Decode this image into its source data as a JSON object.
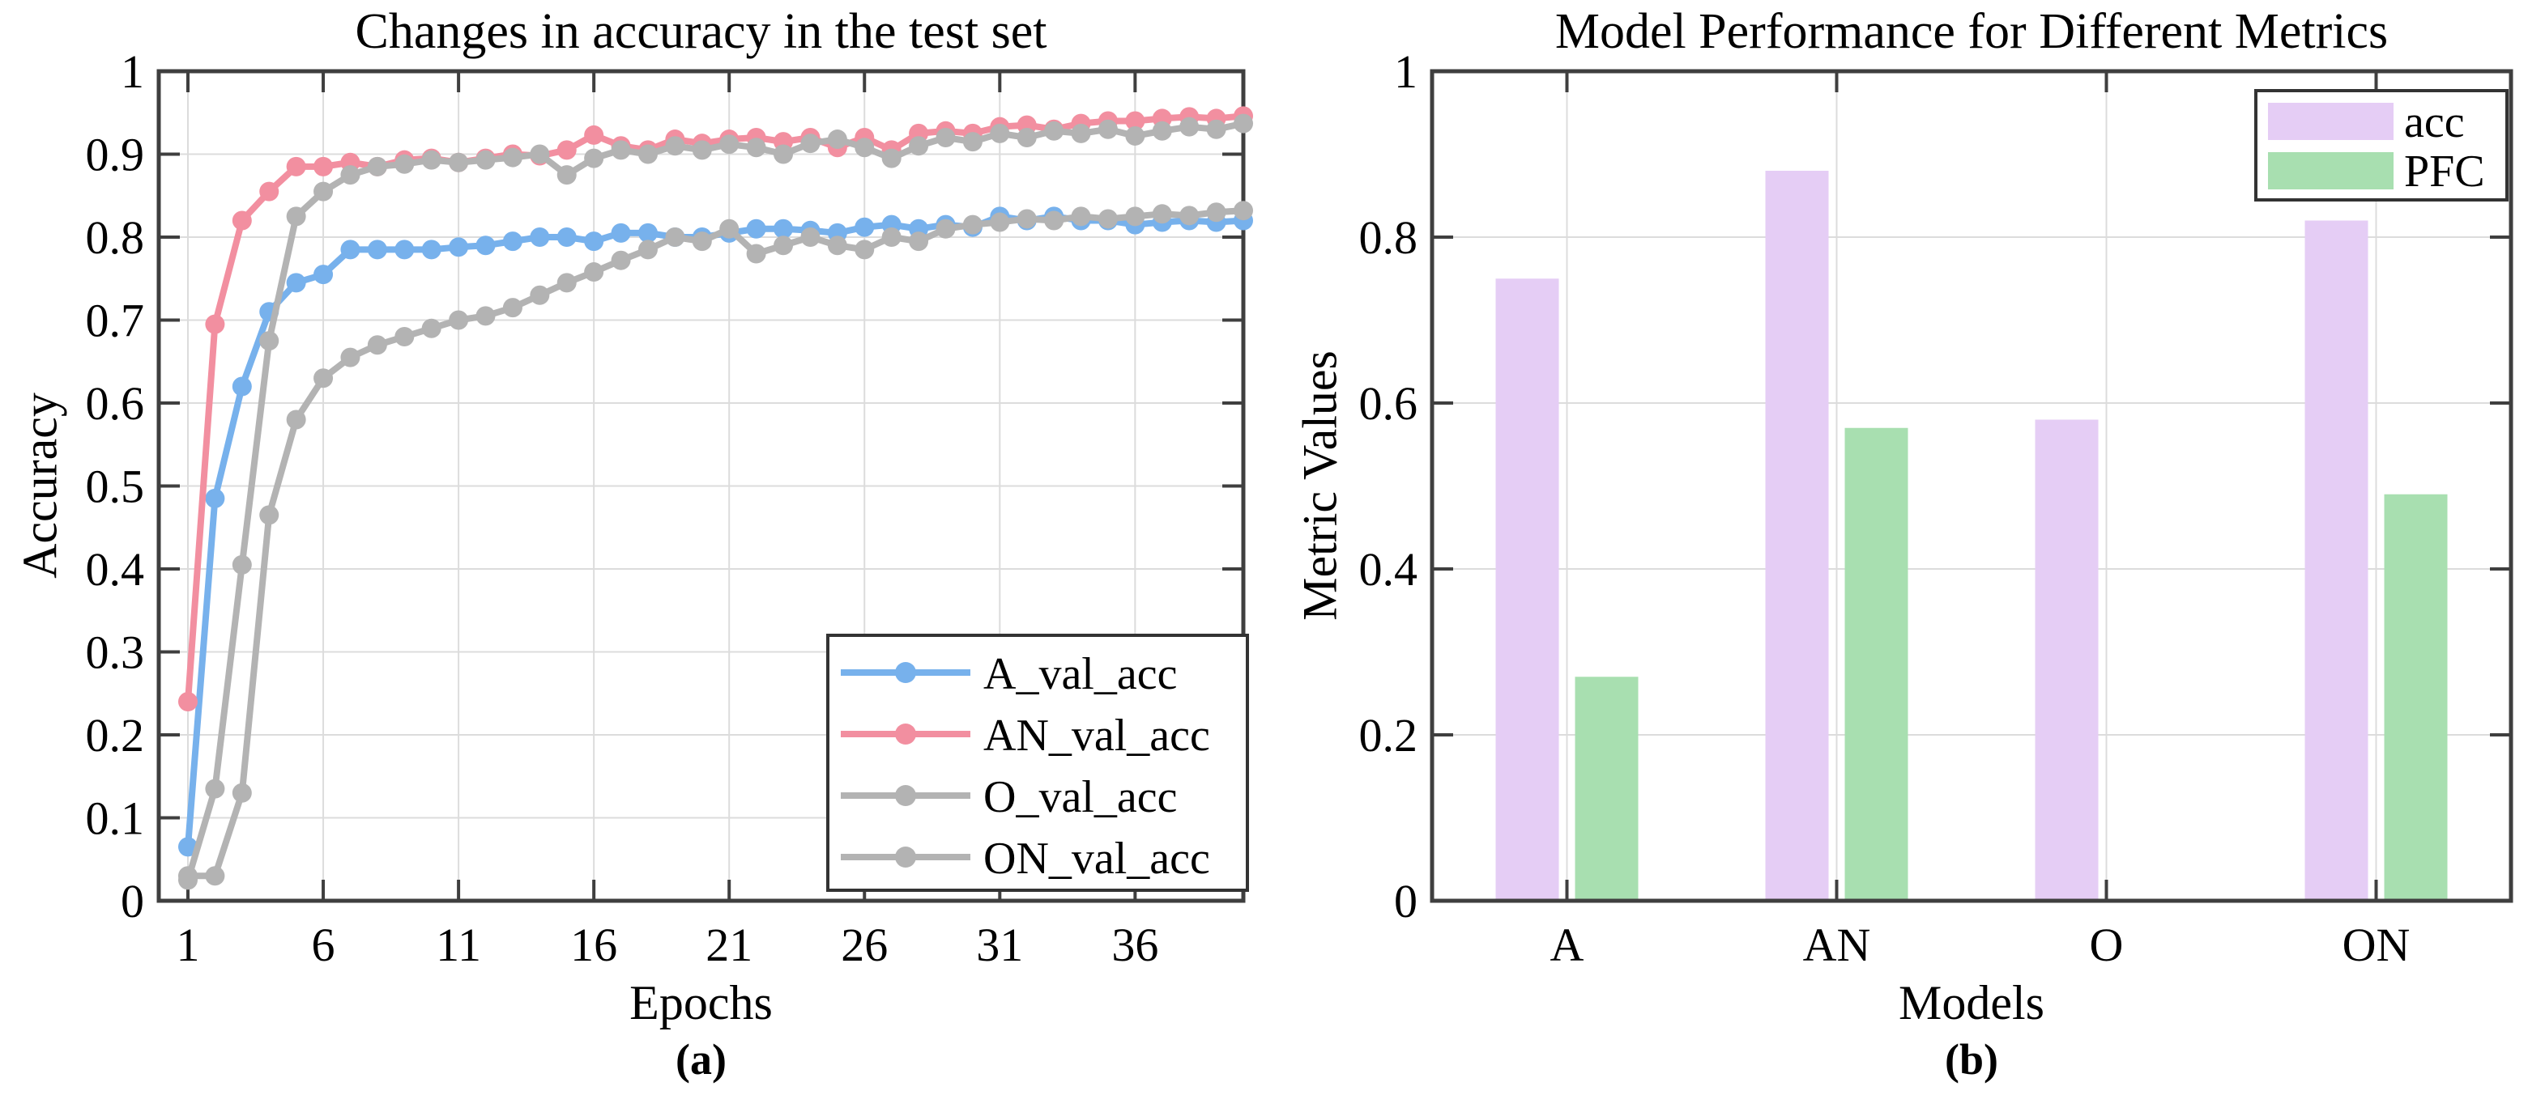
{
  "colors": {
    "blue_line": "#77b1ec",
    "pink_line": "#f28fa0",
    "gray_line": "#b3b3b3",
    "purple_bar": "#e5cdf5",
    "green_bar": "#a8dfb0",
    "grid": "#dcdcdc",
    "frame": "#3f3f3f",
    "text": "#000000",
    "legend_bg": "#ffffff"
  },
  "chart_data": [
    {
      "type": "line",
      "panel_label": "(a)",
      "title": "Changes in accuracy in the test set",
      "xlabel": "Epochs",
      "ylabel": "Accuracy",
      "xlim": [
        1,
        40
      ],
      "ylim": [
        0,
        1
      ],
      "xticks": [
        1,
        6,
        11,
        16,
        21,
        26,
        31,
        36
      ],
      "yticks": [
        0,
        0.1,
        0.2,
        0.3,
        0.4,
        0.5,
        0.6,
        0.7,
        0.8,
        0.9,
        1
      ],
      "grid": true,
      "legend_position": "lower right",
      "epochs": [
        1,
        2,
        3,
        4,
        5,
        6,
        7,
        8,
        9,
        10,
        11,
        12,
        13,
        14,
        15,
        16,
        17,
        18,
        19,
        20,
        21,
        22,
        23,
        24,
        25,
        26,
        27,
        28,
        29,
        30,
        31,
        32,
        33,
        34,
        35,
        36,
        37,
        38,
        39,
        40
      ],
      "series": [
        {
          "name": "A_val_acc",
          "color_key": "blue_line",
          "values": [
            0.065,
            0.485,
            0.62,
            0.71,
            0.745,
            0.755,
            0.785,
            0.785,
            0.785,
            0.785,
            0.788,
            0.79,
            0.795,
            0.8,
            0.8,
            0.795,
            0.805,
            0.805,
            0.8,
            0.8,
            0.805,
            0.81,
            0.81,
            0.808,
            0.805,
            0.812,
            0.815,
            0.81,
            0.815,
            0.812,
            0.825,
            0.82,
            0.825,
            0.82,
            0.82,
            0.815,
            0.818,
            0.82,
            0.818,
            0.82
          ]
        },
        {
          "name": "AN_val_acc",
          "color_key": "pink_line",
          "values": [
            0.24,
            0.695,
            0.82,
            0.855,
            0.885,
            0.885,
            0.89,
            0.885,
            0.893,
            0.895,
            0.89,
            0.895,
            0.9,
            0.898,
            0.905,
            0.923,
            0.91,
            0.905,
            0.918,
            0.913,
            0.918,
            0.92,
            0.915,
            0.92,
            0.908,
            0.92,
            0.905,
            0.925,
            0.928,
            0.925,
            0.933,
            0.935,
            0.93,
            0.937,
            0.94,
            0.94,
            0.943,
            0.945,
            0.943,
            0.946
          ]
        },
        {
          "name": "O_val_acc",
          "color_key": "gray_line",
          "values": [
            0.025,
            0.135,
            0.405,
            0.675,
            0.825,
            0.855,
            0.875,
            0.885,
            0.888,
            0.893,
            0.89,
            0.893,
            0.896,
            0.9,
            0.875,
            0.895,
            0.905,
            0.9,
            0.91,
            0.905,
            0.912,
            0.908,
            0.9,
            0.913,
            0.918,
            0.908,
            0.895,
            0.91,
            0.92,
            0.915,
            0.925,
            0.92,
            0.928,
            0.925,
            0.93,
            0.922,
            0.928,
            0.933,
            0.93,
            0.937
          ]
        },
        {
          "name": "ON_val_acc",
          "color_key": "gray_line",
          "values": [
            0.03,
            0.03,
            0.13,
            0.465,
            0.58,
            0.63,
            0.655,
            0.67,
            0.68,
            0.69,
            0.7,
            0.705,
            0.715,
            0.73,
            0.745,
            0.758,
            0.772,
            0.785,
            0.8,
            0.795,
            0.81,
            0.78,
            0.79,
            0.8,
            0.79,
            0.785,
            0.8,
            0.795,
            0.81,
            0.815,
            0.818,
            0.822,
            0.82,
            0.825,
            0.822,
            0.825,
            0.828,
            0.826,
            0.83,
            0.832
          ]
        }
      ]
    },
    {
      "type": "bar",
      "panel_label": "(b)",
      "title": "Model Performance for Different Metrics",
      "xlabel": "Models",
      "ylabel": "Metric Values",
      "ylim": [
        0,
        1
      ],
      "yticks": [
        0,
        0.2,
        0.4,
        0.6,
        0.8,
        1
      ],
      "grid": true,
      "legend_position": "upper right",
      "categories": [
        "A",
        "AN",
        "O",
        "ON"
      ],
      "series": [
        {
          "name": "acc",
          "color_key": "purple_bar",
          "values": [
            0.75,
            0.88,
            0.58,
            0.82
          ]
        },
        {
          "name": "PFC",
          "color_key": "green_bar",
          "values": [
            0.27,
            0.57,
            0,
            0.49
          ]
        }
      ]
    }
  ]
}
